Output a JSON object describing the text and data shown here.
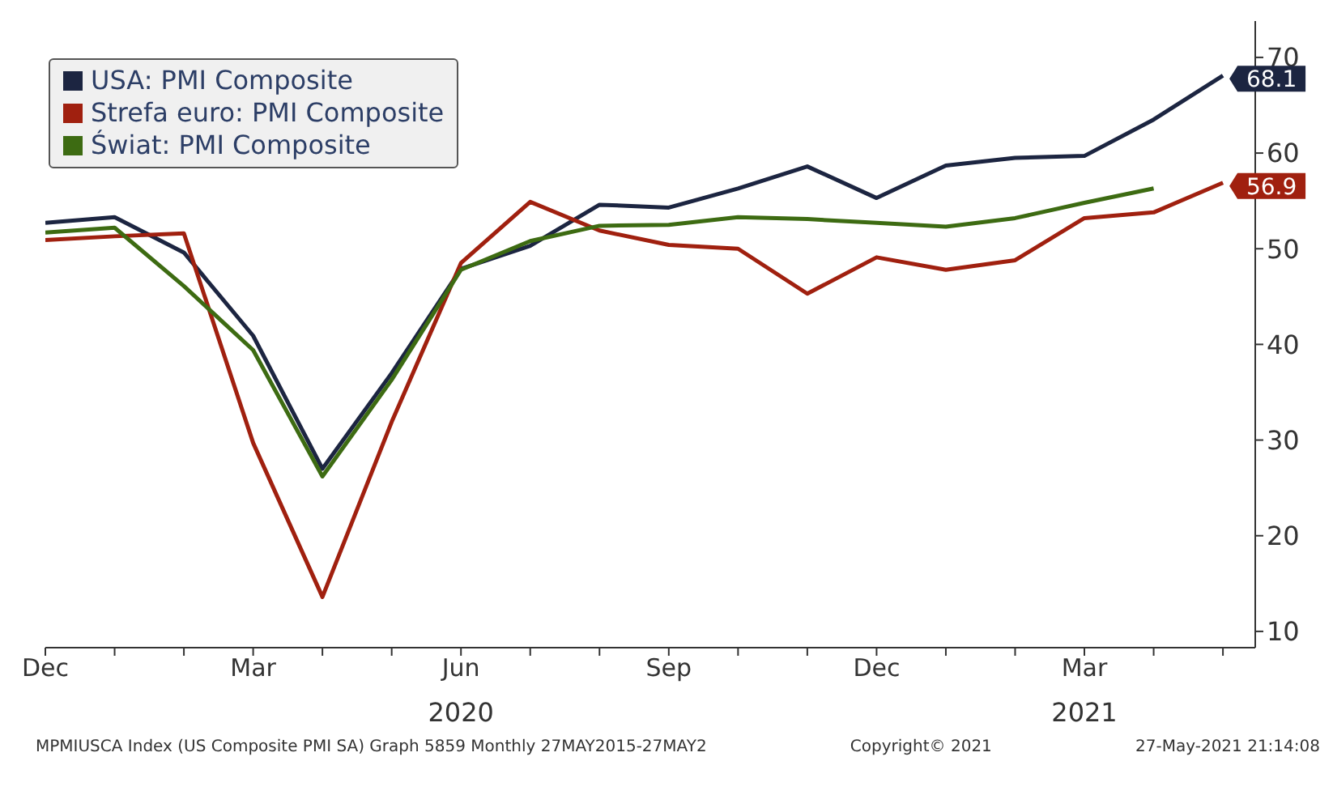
{
  "chart_data": {
    "type": "line",
    "x": [
      "2019-12",
      "2020-01",
      "2020-02",
      "2020-03",
      "2020-04",
      "2020-05",
      "2020-06",
      "2020-07",
      "2020-08",
      "2020-09",
      "2020-10",
      "2020-11",
      "2020-12",
      "2021-01",
      "2021-02",
      "2021-03",
      "2021-04",
      "2021-05"
    ],
    "series": [
      {
        "name": "USA: PMI Composite",
        "color": "#1c2541",
        "values": [
          52.7,
          53.3,
          49.6,
          40.9,
          27.0,
          37.0,
          47.9,
          50.3,
          54.6,
          54.3,
          56.3,
          58.6,
          55.3,
          58.7,
          59.5,
          59.7,
          63.5,
          68.1
        ],
        "value_labels": [
          null,
          null,
          null,
          null,
          null,
          null,
          null,
          null,
          null,
          null,
          null,
          null,
          null,
          null,
          null,
          null,
          null,
          "68.1"
        ]
      },
      {
        "name": "Strefa euro: PMI Composite",
        "color": "#a0200f",
        "values": [
          50.9,
          51.3,
          51.6,
          29.7,
          13.6,
          31.9,
          48.5,
          54.9,
          51.9,
          50.4,
          50.0,
          45.3,
          49.1,
          47.8,
          48.8,
          53.2,
          53.8,
          56.9
        ],
        "value_labels": [
          null,
          null,
          null,
          null,
          null,
          null,
          null,
          null,
          null,
          null,
          null,
          null,
          null,
          null,
          null,
          null,
          null,
          "56.9"
        ]
      },
      {
        "name": "Świat: PMI Composite",
        "color": "#3d6b12",
        "values": [
          51.7,
          52.2,
          46.1,
          39.4,
          26.2,
          36.3,
          47.8,
          50.8,
          52.4,
          52.5,
          53.3,
          53.1,
          52.7,
          52.3,
          53.2,
          54.8,
          56.3,
          null
        ]
      }
    ],
    "xlim": [
      "2019-12",
      "2021-05-15"
    ],
    "xticks": [
      {
        "value": "2019-12",
        "label": "Dec"
      },
      {
        "value": "2020-01",
        "label": null
      },
      {
        "value": "2020-02",
        "label": null
      },
      {
        "value": "2020-03",
        "label": "Mar"
      },
      {
        "value": "2020-04",
        "label": null
      },
      {
        "value": "2020-05",
        "label": null
      },
      {
        "value": "2020-06",
        "label": "Jun"
      },
      {
        "value": "2020-07",
        "label": null
      },
      {
        "value": "2020-08",
        "label": null
      },
      {
        "value": "2020-09",
        "label": "Sep"
      },
      {
        "value": "2020-10",
        "label": null
      },
      {
        "value": "2020-11",
        "label": null
      },
      {
        "value": "2020-12",
        "label": "Dec"
      },
      {
        "value": "2021-01",
        "label": null
      },
      {
        "value": "2021-02",
        "label": null
      },
      {
        "value": "2021-03",
        "label": "Mar"
      },
      {
        "value": "2021-04",
        "label": null
      },
      {
        "value": "2021-05",
        "label": null
      }
    ],
    "x2lim": [
      "2019-12",
      "2021-05-15"
    ],
    "x2ticks": [
      {
        "value": "2020-06",
        "label": "2020"
      },
      {
        "value": "2021-03",
        "label": "2021"
      }
    ],
    "ylim": [
      8.3,
      73.8
    ],
    "yticks": [
      10,
      20,
      30,
      40,
      50,
      60,
      70
    ],
    "grid": false,
    "legend": "top left",
    "marker": "none",
    "line_style": "solid",
    "annotations": [
      "MPMIUSCA Index (US Composite PMI SA) Graph 5859 Monthly 27MAY2015-27MAY2",
      "Copyright© 2021",
      "27-May-2021 21:14:08"
    ]
  }
}
